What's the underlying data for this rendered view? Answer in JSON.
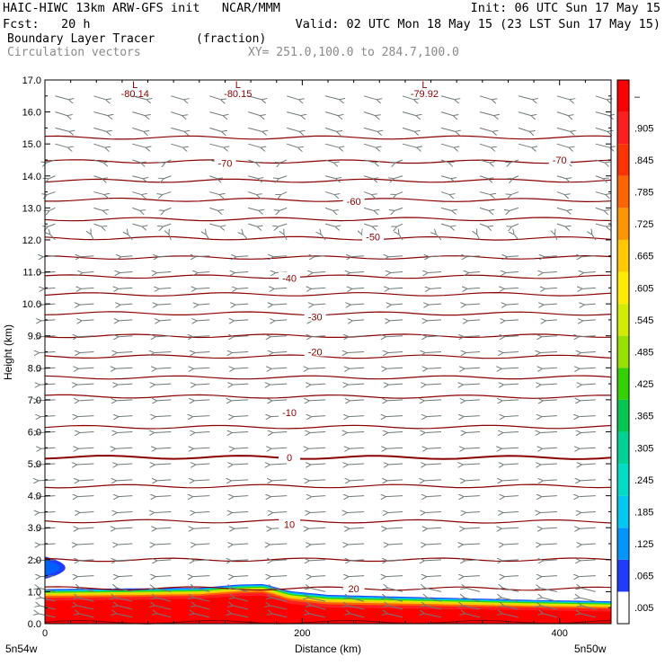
{
  "header": {
    "title_left": "HAIC-HIWC 13km ARW-GFS init   NCAR/MMM",
    "fcst_line": "Fcst:   20 h",
    "init_line": "Init: 06 UTC Sun 17 May 15",
    "valid_line": "Valid: 02 UTC Mon 18 May 15 (23 LST Sun 17 May 15)",
    "field_name": "Boundary Layer Tracer",
    "field_units": "(fraction)",
    "overlay_name": "Circulation vectors",
    "xy_line": "XY= 251.0,100.0 to 284.7,100.0"
  },
  "chart_data": {
    "type": "heatmap",
    "title": "Boundary Layer Tracer (fraction)",
    "xlabel": "Distance (km)",
    "ylabel": "Height (km)",
    "xlim": [
      0,
      440
    ],
    "ylim": [
      0,
      17
    ],
    "x_ticks": [
      0,
      200,
      400
    ],
    "y_ticks": [
      "0.0",
      "1.0",
      "2.0",
      "3.0",
      "4.0",
      "5.0",
      "6.0",
      "7.0",
      "8.0",
      "9.0",
      "10.0",
      "11.0",
      "12.0",
      "13.0",
      "14.0",
      "15.0",
      "16.0",
      "17.0"
    ],
    "x_endpoint_left": "5n54w",
    "x_endpoint_right": "5n50w",
    "colorbar_labels": [
      ".005",
      ".065",
      ".125",
      ".185",
      ".245",
      ".305",
      ".365",
      ".425",
      ".485",
      ".545",
      ".605",
      ".665",
      ".725",
      ".785",
      ".845",
      ".905",
      "–"
    ],
    "colorbar_colors": [
      "#ffffff",
      "#1e3cff",
      "#0096ff",
      "#00c8f0",
      "#00dcc8",
      "#00d296",
      "#00c850",
      "#32d200",
      "#96e100",
      "#d2eb00",
      "#ffeb00",
      "#ffc800",
      "#ff9600",
      "#ff6400",
      "#ff3200",
      "#ff1e1e",
      "#ff0000"
    ],
    "tracer_profile": {
      "distance_km": [
        0,
        60,
        120,
        150,
        170,
        190,
        220,
        300,
        380,
        440
      ],
      "red_top_km": [
        0.72,
        0.74,
        0.78,
        0.86,
        0.88,
        0.62,
        0.5,
        0.46,
        0.42,
        0.38
      ],
      "blue_top_km": [
        1.08,
        1.1,
        1.12,
        1.22,
        1.24,
        1.02,
        0.9,
        0.82,
        0.74,
        0.7
      ]
    },
    "tracer_blob": {
      "x_center_km": 8,
      "height_km": [
        1.4,
        2.1
      ]
    },
    "temperature_contours": {
      "units": "C",
      "labels": [
        {
          "text": "20",
          "x_km": 240,
          "height_km": 1.1
        },
        {
          "text": "10",
          "x_km": 190,
          "height_km": 3.1
        },
        {
          "text": "0",
          "x_km": 190,
          "height_km": 5.2
        },
        {
          "text": "-10",
          "x_km": 190,
          "height_km": 6.6
        },
        {
          "text": "-20",
          "x_km": 210,
          "height_km": 8.5
        },
        {
          "text": "-30",
          "x_km": 210,
          "height_km": 9.6
        },
        {
          "text": "-40",
          "x_km": 190,
          "height_km": 10.8
        },
        {
          "text": "-50",
          "x_km": 255,
          "height_km": 12.1
        },
        {
          "text": "-60",
          "x_km": 240,
          "height_km": 13.2
        },
        {
          "text": "-70",
          "x_km": 140,
          "height_km": 14.4
        },
        {
          "text": "-70",
          "x_km": 400,
          "height_km": 14.5
        }
      ],
      "line_heights_km": [
        0.05,
        1.1,
        2.0,
        3.2,
        4.3,
        5.2,
        6.15,
        7.1,
        7.7,
        8.35,
        9.0,
        9.7,
        10.3,
        10.85,
        11.45,
        12.05,
        12.65,
        13.25,
        13.85,
        14.45,
        15.2
      ]
    },
    "minima": [
      {
        "symbol": "L",
        "value": "-80.14",
        "x_km": 70
      },
      {
        "symbol": "L",
        "value": "-80.15",
        "x_km": 150
      },
      {
        "symbol": "L",
        "value": "-79.92",
        "x_km": 295
      }
    ],
    "vectors": {
      "name": "Circulation vectors",
      "columns_km": [
        8,
        38,
        68,
        98,
        128,
        158,
        188,
        218,
        248,
        278,
        308,
        338,
        368,
        398,
        428
      ],
      "rows_km": [
        0.2,
        0.45,
        0.7,
        1.0,
        1.5,
        2.0,
        2.5,
        3.0,
        3.5,
        4.0,
        4.5,
        5.0,
        5.5,
        6.0,
        6.5,
        7.0,
        7.5,
        8.0,
        8.5,
        9.0,
        9.5,
        10.0,
        10.5,
        11.0,
        11.5,
        12.0,
        12.5,
        13.0,
        13.5,
        14.0,
        14.5,
        15.0,
        15.5,
        16.0,
        16.5
      ]
    }
  }
}
